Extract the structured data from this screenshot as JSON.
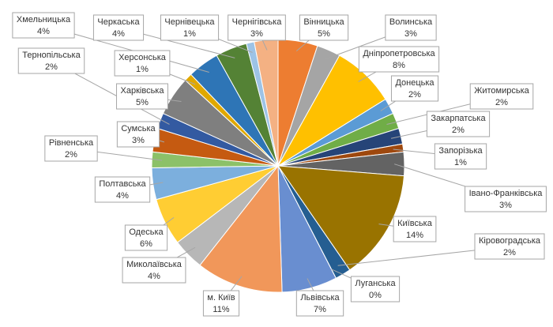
{
  "chart_data": {
    "type": "pie",
    "categories": [
      "Вінницька",
      "Волинська",
      "Дніпропетровська",
      "Донецька",
      "Житомирська",
      "Закарпатська",
      "Запорізька",
      "Івано-Франківська",
      "Київська",
      "Кіровоградська",
      "Луганська",
      "Львівська",
      "м. Київ",
      "Миколаївська",
      "Одеська",
      "Полтавська",
      "Рівненська",
      "Сумська",
      "Тернопільська",
      "Харківська",
      "Херсонська",
      "Хмельницька",
      "Черкаська",
      "Чернівецька",
      "Чернігівська"
    ],
    "values": [
      5,
      3,
      8,
      2,
      2,
      2,
      1,
      3,
      14,
      2,
      0,
      7,
      11,
      4,
      6,
      4,
      2,
      3,
      2,
      5,
      1,
      4,
      4,
      1,
      3
    ],
    "value_labels": [
      "5%",
      "3%",
      "8%",
      "2%",
      "2%",
      "2%",
      "1%",
      "3%",
      "14%",
      "2%",
      "0%",
      "7%",
      "11%",
      "4%",
      "6%",
      "4%",
      "2%",
      "3%",
      "2%",
      "5%",
      "1%",
      "4%",
      "4%",
      "1%",
      "3%"
    ],
    "colors": [
      "#ED7D31",
      "#A5A5A5",
      "#FFC000",
      "#5B9BD5",
      "#70AD47",
      "#264478",
      "#9E480E",
      "#636363",
      "#997300",
      "#255E91",
      "#43682B",
      "#698ED0",
      "#F1975A",
      "#B7B7B7",
      "#FFCD33",
      "#7CAFDD",
      "#8CC168",
      "#C55A11",
      "#335AA1",
      "#7F7F7F",
      "#E0A800",
      "#2E75B6",
      "#548235",
      "#9DC3E6",
      "#F4B183"
    ]
  }
}
